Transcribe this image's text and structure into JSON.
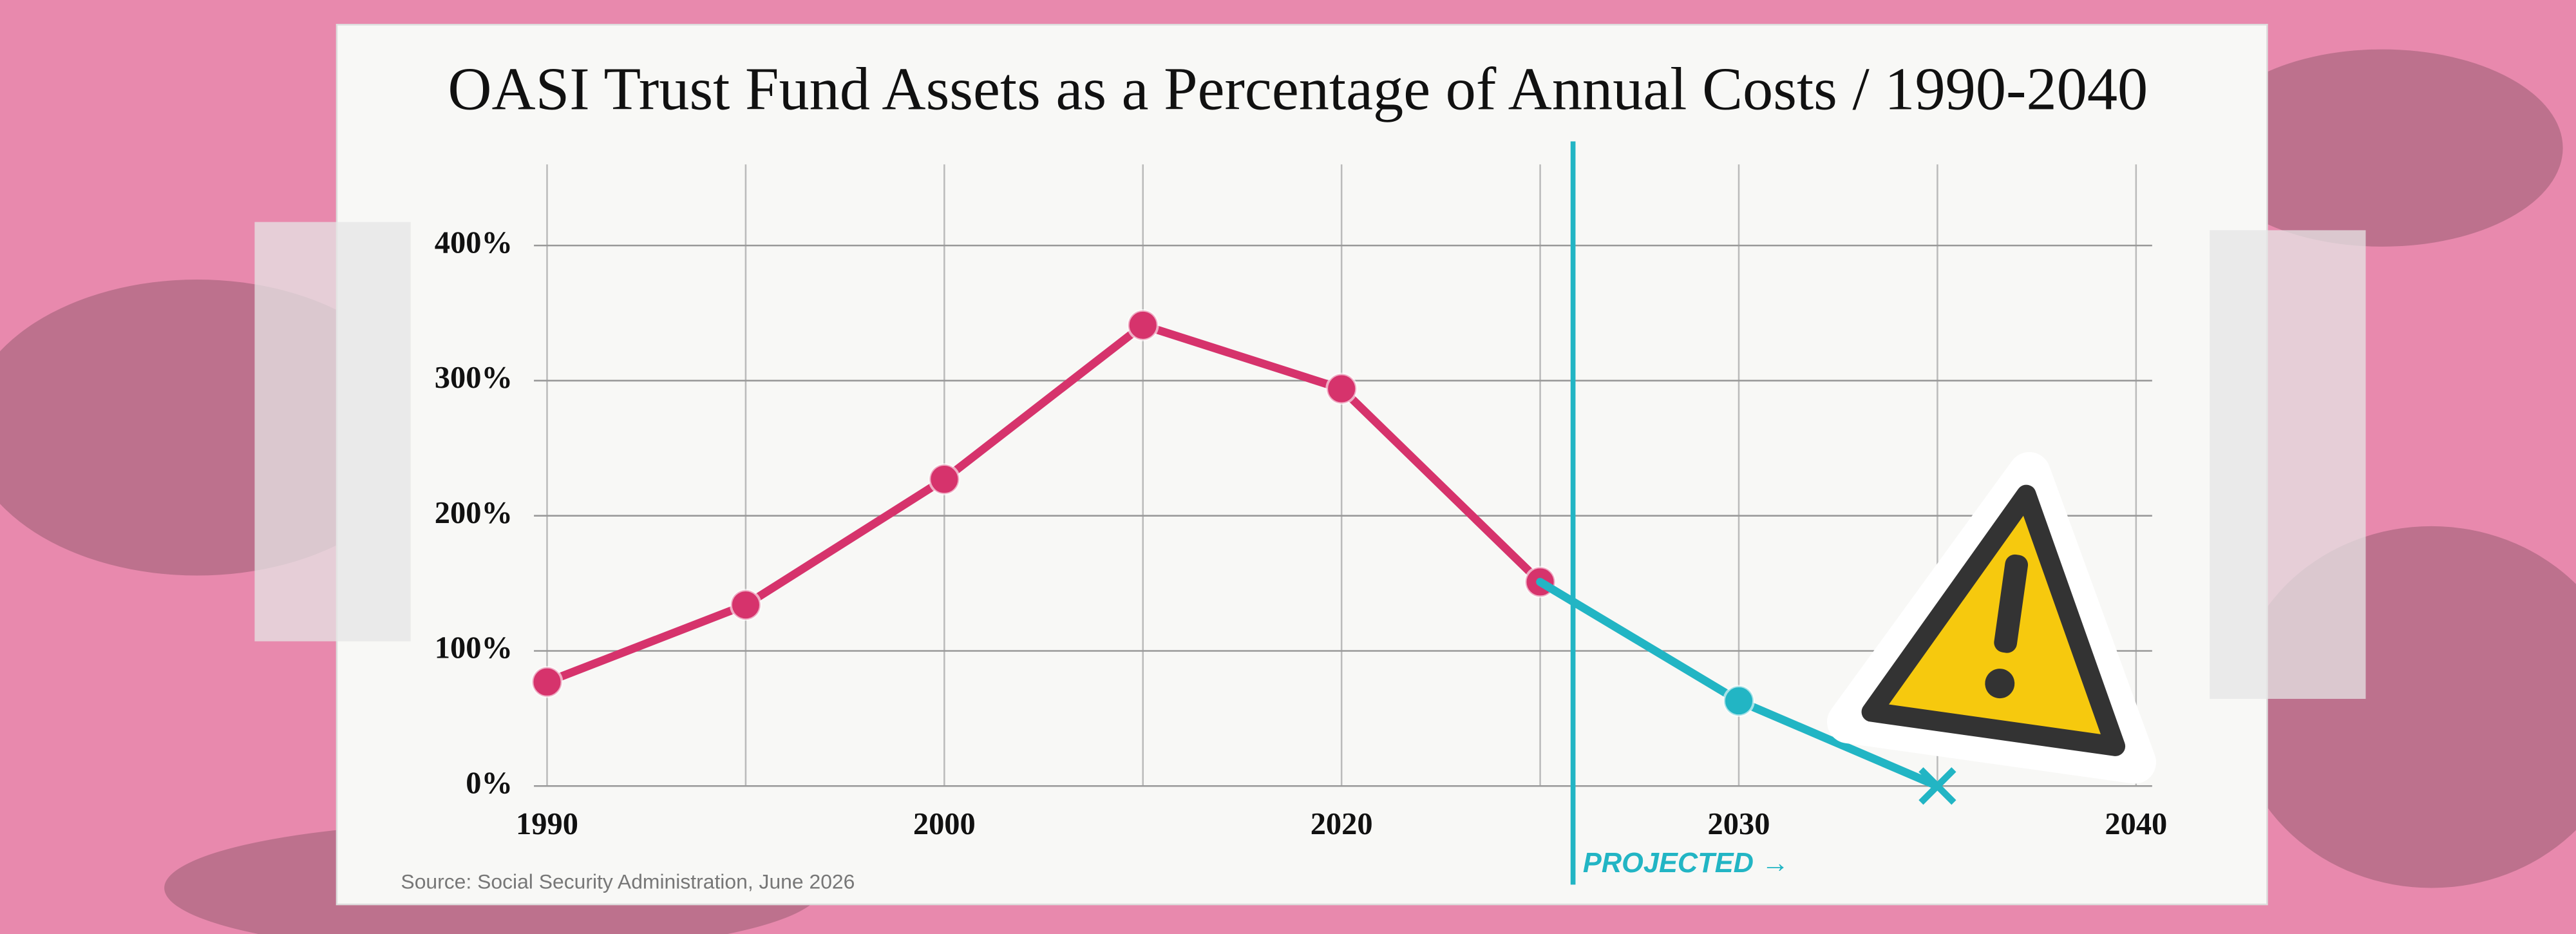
{
  "chart_data": {
    "type": "line",
    "title": "OASI Trust Fund Assets as a Percentage of Annual Costs / 1990-2040",
    "source": "Source: Social Security Administration, June 2026",
    "annotation": "PROJECTED →",
    "categories": [
      "1990",
      null,
      "2000",
      null,
      "2020",
      null,
      "2030",
      null,
      "2040"
    ],
    "series": [
      {
        "color": "#d6336c",
        "values": [
          77,
          134,
          227,
          341,
          294,
          151,
          null,
          null,
          null
        ]
      },
      {
        "color": "#22b5c4",
        "values": [
          null,
          null,
          null,
          null,
          null,
          151,
          63,
          0,
          null
        ]
      }
    ],
    "ylim": [
      0,
      460
    ],
    "yticks": [
      {
        "value": 0,
        "label": "0%"
      },
      {
        "value": 100,
        "label": "100%"
      },
      {
        "value": 200,
        "label": "200%"
      },
      {
        "value": 300,
        "label": "300%"
      },
      {
        "value": 400,
        "label": "400%"
      }
    ],
    "grid": true
  }
}
